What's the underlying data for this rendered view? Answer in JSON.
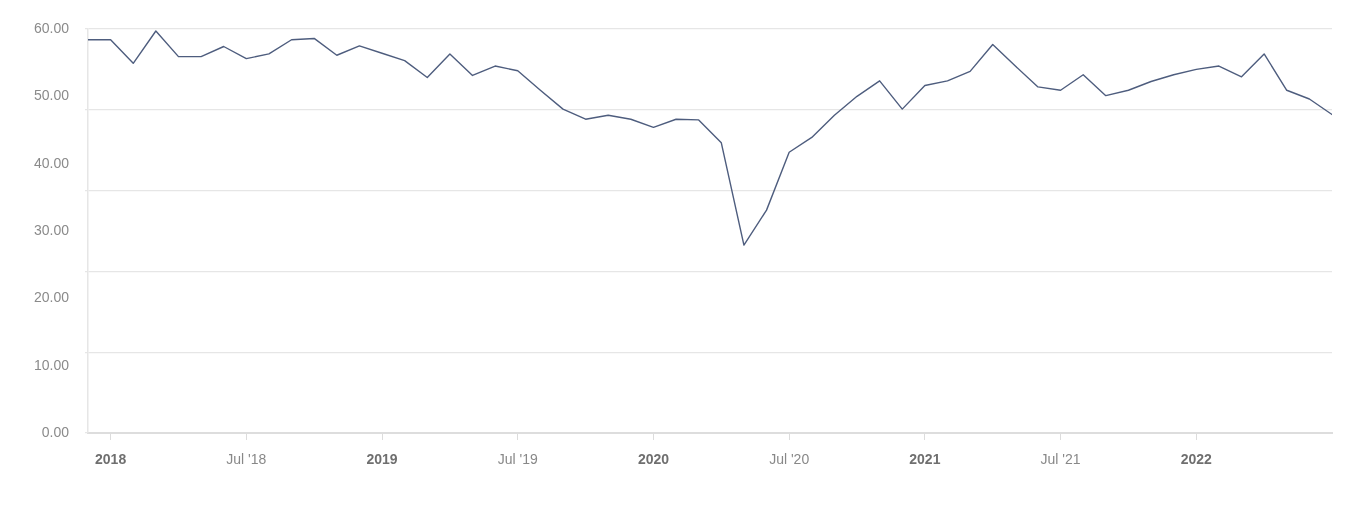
{
  "chart_data": {
    "type": "line",
    "color": "#4e5d7e",
    "marker": "none",
    "grid": "y",
    "x": [
      "2017-12",
      "2018-01",
      "2018-02",
      "2018-03",
      "2018-04",
      "2018-05",
      "2018-06",
      "2018-07",
      "2018-08",
      "2018-09",
      "2018-10",
      "2018-11",
      "2018-12",
      "2019-01",
      "2019-02",
      "2019-03",
      "2019-04",
      "2019-05",
      "2019-06",
      "2019-07",
      "2019-08",
      "2019-09",
      "2019-10",
      "2019-11",
      "2019-12",
      "2020-01",
      "2020-02",
      "2020-03",
      "2020-04",
      "2020-05",
      "2020-06",
      "2020-07",
      "2020-08",
      "2020-09",
      "2020-10",
      "2020-11",
      "2020-12",
      "2021-01",
      "2021-02",
      "2021-03",
      "2021-04",
      "2021-05",
      "2021-06",
      "2021-07",
      "2021-08",
      "2021-09",
      "2021-10",
      "2021-11",
      "2021-12",
      "2022-01",
      "2022-02",
      "2022-03",
      "2022-04",
      "2022-05",
      "2022-06",
      "2022-07"
    ],
    "values": [
      58.4,
      58.4,
      54.9,
      59.7,
      55.9,
      55.9,
      57.4,
      55.6,
      56.3,
      58.4,
      58.6,
      56.1,
      57.5,
      56.4,
      55.3,
      52.8,
      56.3,
      53.1,
      54.5,
      53.8,
      50.9,
      48.1,
      46.6,
      47.2,
      46.6,
      45.4,
      46.6,
      46.5,
      43.1,
      27.9,
      33.1,
      41.7,
      43.9,
      47.2,
      50.0,
      52.3,
      48.1,
      51.6,
      52.3,
      53.7,
      57.7,
      54.5,
      51.4,
      50.9,
      53.2,
      50.1,
      50.9,
      52.2,
      53.2,
      54.0,
      54.5,
      52.9,
      56.3,
      50.9,
      49.6,
      47.3
    ],
    "xlim": [
      "2017-12",
      "2022-07"
    ],
    "xticks": [
      {
        "value": "2018-01",
        "label": "2018"
      },
      {
        "value": "2018-07",
        "label": "Jul '18"
      },
      {
        "value": "2019-01",
        "label": "2019"
      },
      {
        "value": "2019-07",
        "label": "Jul '19"
      },
      {
        "value": "2020-01",
        "label": "2020"
      },
      {
        "value": "2020-07",
        "label": "Jul '20"
      },
      {
        "value": "2021-01",
        "label": "2021"
      },
      {
        "value": "2021-07",
        "label": "Jul '21"
      },
      {
        "value": "2022-01",
        "label": "2022"
      }
    ],
    "ylim": [
      0,
      60
    ],
    "yticks": [
      {
        "value": 0,
        "label": "0.00"
      },
      {
        "value": 10,
        "label": "10.00"
      },
      {
        "value": 12,
        "label": null
      },
      {
        "value": 20,
        "label": "20.00"
      },
      {
        "value": 24,
        "label": null
      },
      {
        "value": 30,
        "label": "30.00"
      },
      {
        "value": 36,
        "label": null
      },
      {
        "value": 40,
        "label": "40.00"
      },
      {
        "value": 48,
        "label": null
      },
      {
        "value": 50,
        "label": "50.00"
      },
      {
        "value": 60,
        "label": "60.00"
      }
    ]
  }
}
